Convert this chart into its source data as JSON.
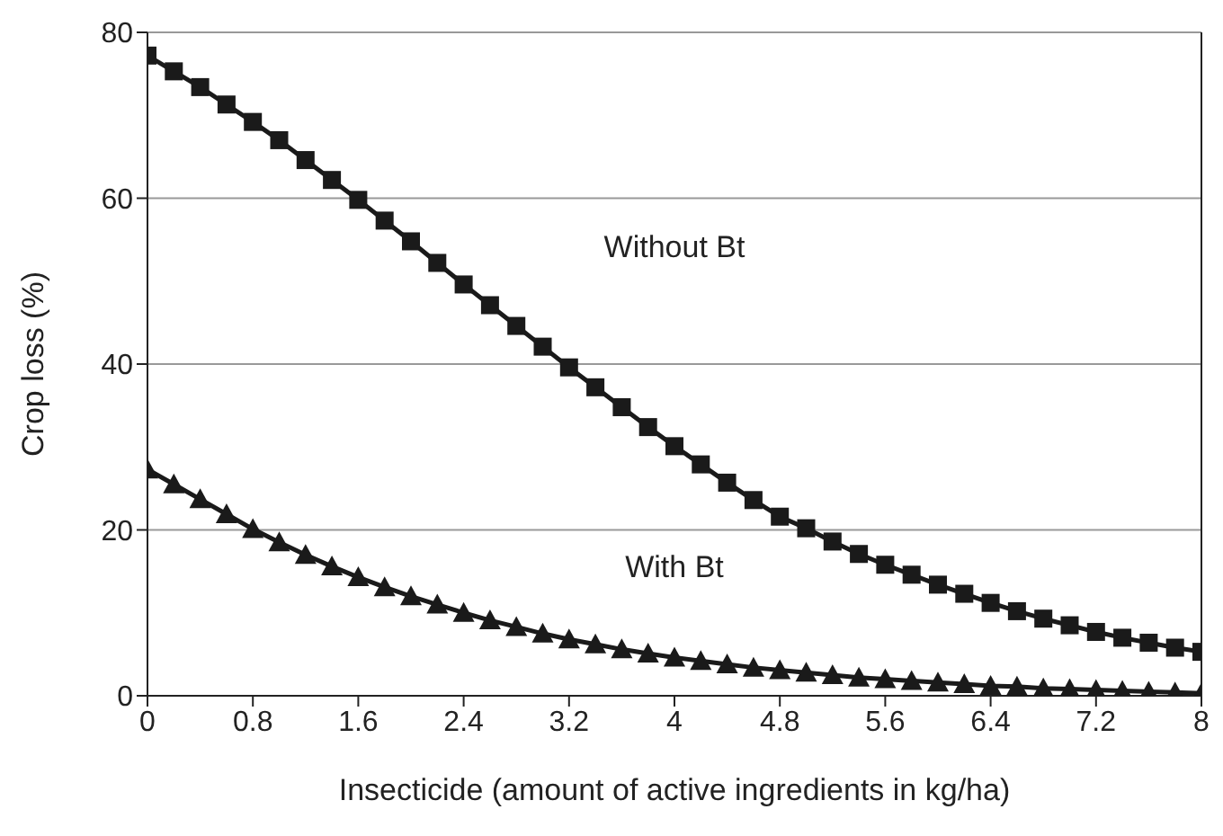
{
  "chart_data": {
    "type": "line",
    "xlabel": "Insecticide (amount of active ingredients in kg/ha)",
    "ylabel": "Crop loss (%)",
    "x": [
      0,
      0.2,
      0.4,
      0.6,
      0.8,
      1,
      1.2,
      1.4,
      1.6,
      1.8,
      2,
      2.2,
      2.4,
      2.6,
      2.8,
      3,
      3.2,
      3.4,
      3.6,
      3.8,
      4,
      4.2,
      4.4,
      4.6,
      4.8,
      5,
      5.2,
      5.4,
      5.6,
      5.8,
      6,
      6.2,
      6.4,
      6.6,
      6.8,
      7,
      7.2,
      7.4,
      7.6,
      7.8,
      8
    ],
    "series": [
      {
        "name": "Without Bt",
        "color": "#1a1a1a",
        "marker": "square",
        "values": [
          77.2,
          75.3,
          73.4,
          71.3,
          69.2,
          67.0,
          64.6,
          62.2,
          59.8,
          57.3,
          54.8,
          52.2,
          49.6,
          47.1,
          44.6,
          42.1,
          39.6,
          37.2,
          34.8,
          32.4,
          30.1,
          27.9,
          25.7,
          23.6,
          21.6,
          20.2,
          18.6,
          17.1,
          15.8,
          14.6,
          13.4,
          12.3,
          11.2,
          10.2,
          9.3,
          8.5,
          7.7,
          7.0,
          6.4,
          5.8,
          5.3
        ]
      },
      {
        "name": "With Bt",
        "color": "#1a1a1a",
        "marker": "triangle",
        "values": [
          27.3,
          25.5,
          23.7,
          21.9,
          20.1,
          18.5,
          17.0,
          15.6,
          14.3,
          13.1,
          12.0,
          11.0,
          10.0,
          9.1,
          8.3,
          7.5,
          6.8,
          6.2,
          5.6,
          5.1,
          4.6,
          4.2,
          3.8,
          3.4,
          3.1,
          2.8,
          2.5,
          2.2,
          2.0,
          1.8,
          1.6,
          1.4,
          1.2,
          1.1,
          0.9,
          0.8,
          0.7,
          0.6,
          0.5,
          0.4,
          0.3
        ]
      }
    ],
    "xlim": [
      0,
      8
    ],
    "xticks": [
      0,
      0.8,
      1.6,
      2.4,
      3.2,
      4,
      4.8,
      5.6,
      6.4,
      7.2,
      8
    ],
    "ylim": [
      0,
      80
    ],
    "yticks": [
      0,
      20,
      40,
      60,
      80
    ],
    "grid": "y",
    "legend": false,
    "line_style": "solid"
  }
}
